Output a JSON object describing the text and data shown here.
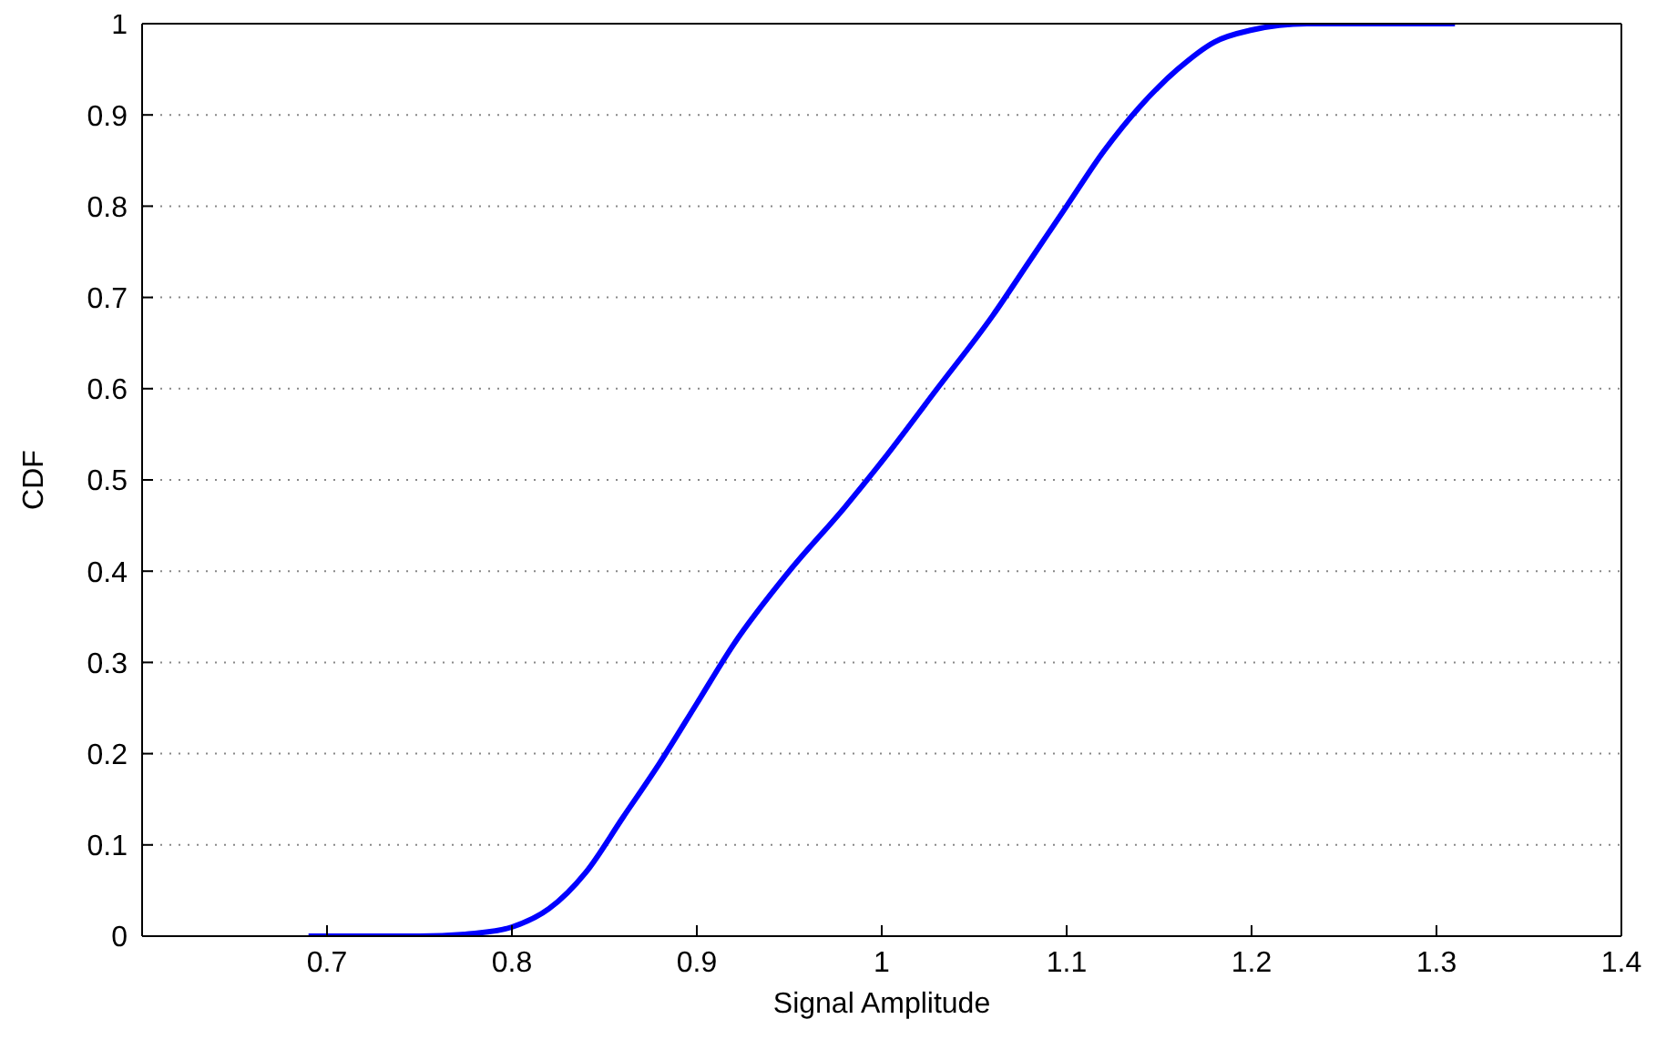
{
  "chart_data": {
    "type": "line",
    "xlabel": "Signal Amplitude",
    "ylabel": "CDF",
    "x": [
      0.69,
      0.75,
      0.78,
      0.8,
      0.82,
      0.84,
      0.86,
      0.88,
      0.9,
      0.92,
      0.95,
      0.98,
      1.0,
      1.03,
      1.06,
      1.08,
      1.1,
      1.12,
      1.14,
      1.16,
      1.18,
      1.2,
      1.23,
      1.31
    ],
    "series": [
      {
        "color": "#0000ff",
        "values": [
          0,
          0,
          0.003,
          0.01,
          0.03,
          0.07,
          0.13,
          0.19,
          0.255,
          0.32,
          0.4,
          0.47,
          0.52,
          0.6,
          0.68,
          0.74,
          0.8,
          0.86,
          0.91,
          0.95,
          0.98,
          0.993,
          1,
          1
        ]
      }
    ],
    "xlim": [
      0.6,
      1.4
    ],
    "xticks": [
      0.7,
      0.8,
      0.9,
      1,
      1.1,
      1.2,
      1.3,
      1.4
    ],
    "ylim": [
      0,
      1
    ],
    "yticks": [
      0,
      0.1,
      0.2,
      0.3,
      0.4,
      0.5,
      0.6,
      0.7,
      0.8,
      0.9,
      1
    ],
    "grid": "y",
    "marker": "none",
    "line_style": "solid"
  }
}
